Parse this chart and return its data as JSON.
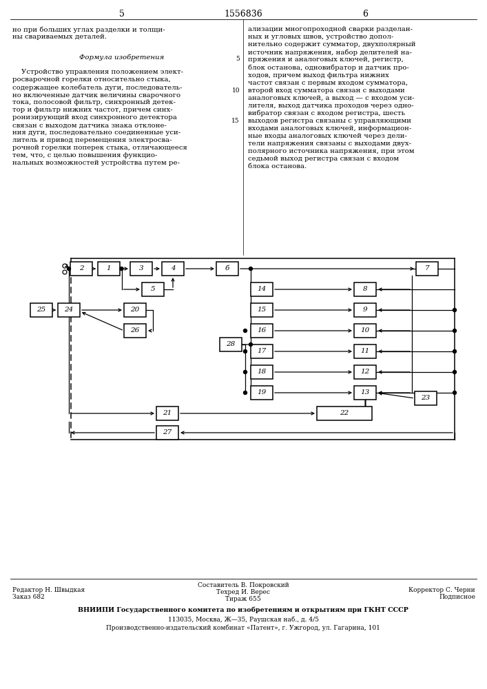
{
  "title": "1556836",
  "bg": "#ffffff",
  "header_line_text_left": "но при больших углах разделки и толщи-\nны свариваемых деталей.",
  "formula_title": "Формула изобретения",
  "left_body": "    Устройство управления положением элект-\nросварочной горелки относительно стыка,\nсодержащее колебатель дуги, последователь-\nно включенные датчик величины сварочного\nтока, полосовой фильтр, синхронный детек-\nтор и фильтр нижних частот, причем синх-\nронизирующий вход синхронного детектора\nсвязан с выходом датчика знака отклоне-\nния дуги, последовательно соединенные уси-\nлитель и привод перемещения электросва-\nрочной горелки поперек стыка, отличающееся\nтем, что, с целью повышения функцио-\nнальных возможностей устройства путем ре-",
  "right_body": "ализации многопроходной сварки разделан-\nных и угловых швов, устройство допол-\nнительно содержит сумматор, двухполярный\nисточник напряжения, набор делителей на-\nпряжения и аналоговых ключей, регистр,\nблок останова, одновибратор и датчик про-\nходов, причем выход фильтра нижних\nчастот связан с первым входом сумматора,\nвторой вход сумматора связан с выходами\nаналоговых ключей, а выход — с входом уси-\nлителя, выход датчика проходов через одно-\nвибратор связан с входом регистра, шесть\nвыходов регистра связаны с управляющими\nвходами аналоговых ключей, информацион-\nные входы аналоговых ключей через дели-\nтели напряжения связаны с выходами двух-\nполярного источника напряжения, при этом\nседьмой выход регистра связан с входом\nблока останова.",
  "footer_left1": "Редактор Н. Швыдкая",
  "footer_left2": "Заказ 682",
  "footer_mid1": "Составитель В. Покровский",
  "footer_mid2": "Техред И. Верес",
  "footer_mid3": "Тираж 655",
  "footer_right1": "Корректор С. Черни",
  "footer_right2": "Подписное",
  "footer_vnipi": "ВНИИПИ Государственного комитета по изобретениям и открытиям при ГКНТ СССР",
  "footer_addr": "113035, Москва, Ж‵35, Раушская наб., д. 4/5",
  "footer_patent": "Производственно-издательский комбинат «Патент», г. Ужгород, ул. Гагарина, 101"
}
